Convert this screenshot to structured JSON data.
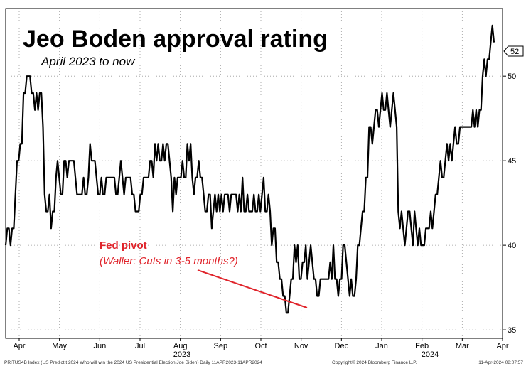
{
  "chart_data": {
    "type": "line",
    "title": "Jeo Boden approval rating",
    "subtitle": "April 2023 to now",
    "y_ticks": [
      35,
      40,
      45,
      50
    ],
    "ylim": [
      34.5,
      54
    ],
    "last_value_label": "52",
    "x_tick_labels": [
      "Apr",
      "May",
      "Jun",
      "Jul",
      "Aug",
      "Sep",
      "Oct",
      "Nov",
      "Dec",
      "Jan",
      "Feb",
      "Mar",
      "Apr"
    ],
    "year_labels": [
      "2023",
      "2024"
    ],
    "annotation": {
      "title": "Fed pivot",
      "text": "(Waller: Cuts in 3-5 months?)",
      "color": "#e0242b"
    },
    "grid": true,
    "line_color": "#000000",
    "series": [
      {
        "values": [
          40,
          41,
          41,
          40,
          41,
          41,
          43,
          45,
          45,
          46,
          46,
          49,
          49,
          50,
          50,
          50,
          49,
          49,
          48,
          49,
          48,
          49,
          49,
          47,
          43,
          42,
          42,
          43,
          41,
          42,
          42,
          44,
          45,
          44,
          43,
          43,
          45,
          45,
          44,
          45,
          45,
          45,
          45,
          44,
          43,
          43,
          43,
          43,
          44,
          43,
          43,
          44,
          46,
          45,
          45,
          45,
          44,
          43,
          43,
          44,
          43,
          43,
          44,
          44,
          44,
          44,
          44,
          44,
          43,
          43,
          44,
          45,
          44,
          43,
          44,
          44,
          44,
          44,
          43,
          43,
          42,
          42,
          42,
          43,
          43,
          44,
          44,
          44,
          44,
          45,
          45,
          44,
          46,
          45,
          46,
          45,
          45,
          46,
          45,
          46,
          46,
          45,
          44,
          42,
          44,
          43,
          44,
          44,
          44,
          45,
          44,
          44,
          46,
          45,
          46,
          44,
          43,
          44,
          44,
          45,
          44,
          44,
          43,
          42,
          42,
          43,
          43,
          41,
          42,
          43,
          42,
          43,
          42,
          43,
          42,
          43,
          43,
          43,
          42,
          43,
          43,
          43,
          43,
          42,
          43,
          42,
          44,
          42,
          42,
          43,
          42,
          42,
          42,
          43,
          42,
          42,
          43,
          42,
          43,
          44,
          42,
          42,
          43,
          42,
          40,
          41,
          41,
          39,
          39,
          38,
          38,
          37,
          37,
          36,
          36,
          37,
          38,
          38,
          40,
          39,
          40,
          38,
          38,
          39,
          39,
          40,
          38,
          39,
          40,
          39,
          38,
          38,
          37,
          37,
          38,
          38,
          38,
          38,
          38,
          38,
          39,
          38,
          40,
          38,
          38,
          37,
          38,
          38,
          40,
          40,
          39,
          38,
          37,
          38,
          37,
          37,
          38,
          40,
          40,
          41,
          42,
          42,
          44,
          44,
          47,
          47,
          46,
          47,
          48,
          48,
          47,
          48,
          49,
          48,
          48,
          49,
          48,
          47,
          48,
          49,
          48,
          47,
          42,
          41,
          42,
          41,
          40,
          41,
          42,
          42,
          41,
          40,
          42,
          41,
          40,
          41,
          40,
          40,
          40,
          41,
          41,
          41,
          42,
          41,
          42,
          43,
          43,
          44,
          45,
          44,
          44,
          45,
          46,
          45,
          46,
          45,
          46,
          47,
          46,
          46,
          47,
          47,
          47,
          47,
          47,
          47,
          47,
          47,
          48,
          47,
          48,
          47,
          48,
          48,
          50,
          51,
          50,
          51,
          51,
          52,
          53,
          52
        ]
      }
    ]
  },
  "footer": {
    "source": "PRITUS4B Index (US PredictIt 2024 Who will win the 2024 US Presidential Election Joe Biden)  Daily 11APR2023-11APR2024",
    "copyright": "Copyright© 2024 Bloomberg Finance L.P.",
    "timestamp": "11-Apr-2024 08:07:57"
  }
}
